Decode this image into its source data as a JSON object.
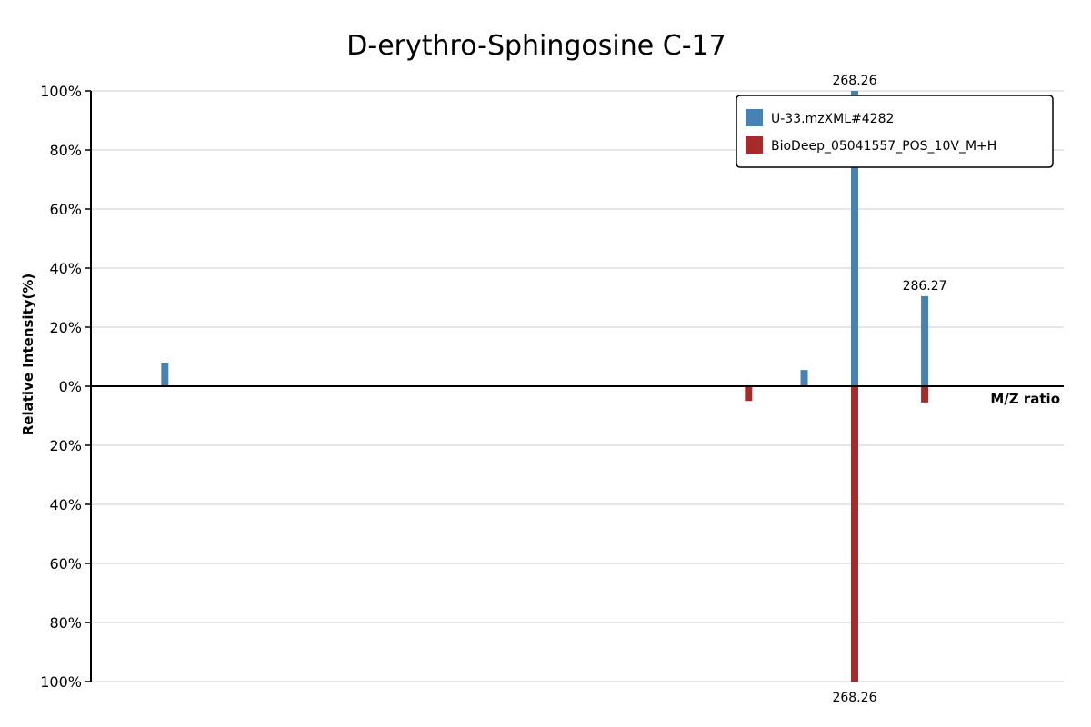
{
  "chart_data": {
    "type": "bar",
    "title": "D-erythro-Sphingosine C-17",
    "xlabel": "M/Z ratio",
    "ylabel": "Relative Intensity(%)",
    "x_range_mz": [
      72,
      322
    ],
    "ylim_top": [
      0,
      100
    ],
    "ylim_bottom": [
      0,
      100
    ],
    "yticks_top": [
      "100%",
      "80%",
      "60%",
      "40%",
      "20%",
      "0%"
    ],
    "yticks_bottom": [
      "20%",
      "40%",
      "60%",
      "80%",
      "100%"
    ],
    "grid": true,
    "legend_position": "top-right",
    "series": [
      {
        "name": "U-33.mzXML#4282",
        "color": "#4682b4",
        "direction": "up",
        "peaks": [
          {
            "mz": 91.0,
            "intensity": 8
          },
          {
            "mz": 255.3,
            "intensity": 5.5
          },
          {
            "mz": 268.26,
            "intensity": 100,
            "label": "268.26"
          },
          {
            "mz": 286.27,
            "intensity": 30.5,
            "label": "286.27"
          }
        ]
      },
      {
        "name": "BioDeep_05041557_POS_10V_M+H",
        "color": "#a52a2a",
        "direction": "down",
        "peaks": [
          {
            "mz": 241.0,
            "intensity": 5
          },
          {
            "mz": 268.26,
            "intensity": 100,
            "label": "268.26"
          },
          {
            "mz": 286.27,
            "intensity": 5.5
          }
        ]
      }
    ]
  }
}
